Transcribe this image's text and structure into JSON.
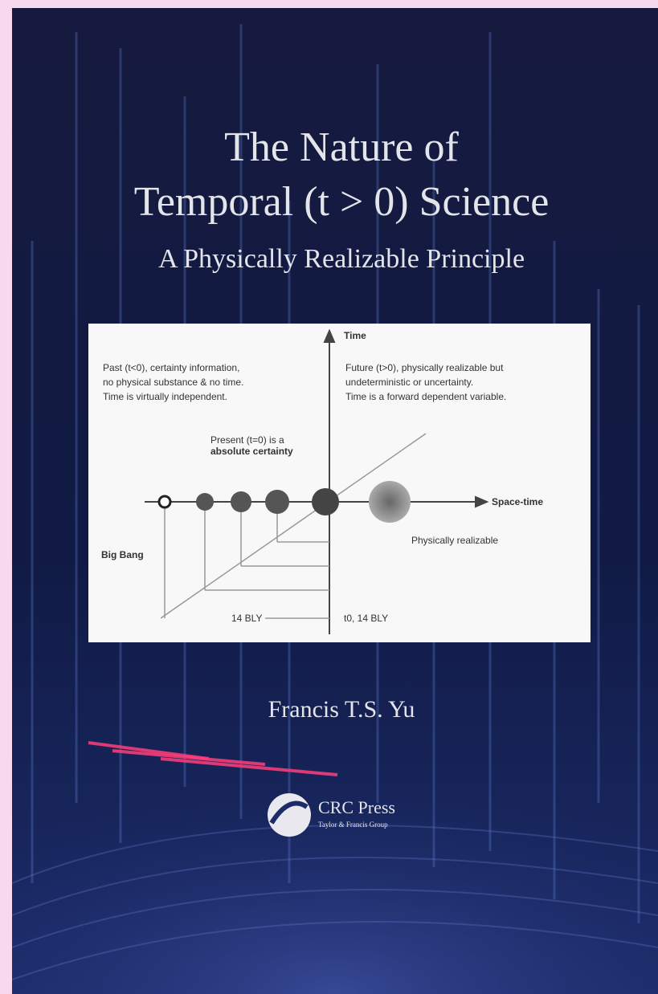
{
  "cover": {
    "title_lines": [
      "The Nature of",
      "Temporal (t > 0) Science"
    ],
    "subtitle": "A Physically Realizable Principle",
    "author": "Francis T.S. Yu",
    "publisher": "CRC Press",
    "publisher_tagline": "Taylor & Francis Group"
  },
  "diagram": {
    "axis_time": "Time",
    "axis_space_time": "Space-time",
    "past_lines": [
      "Past (t<0), certainty information,",
      "no physical substance & no time.",
      "Time is virtually independent."
    ],
    "future_lines": [
      "Future (t>0), physically realizable but",
      "undeterministic or uncertainty.",
      "Time is a forward dependent variable."
    ],
    "present_lines": [
      "Present (t=0) is a",
      "absolute certainty"
    ],
    "big_bang": "Big Bang",
    "left_span": "14 BLY",
    "right_span": "t0, 14 BLY",
    "realizable": "Physically realizable"
  }
}
